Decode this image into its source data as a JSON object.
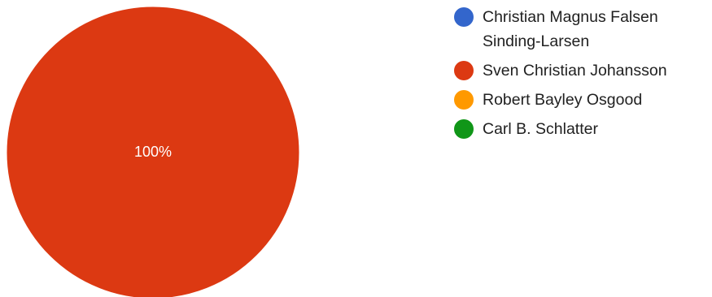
{
  "chart_data": {
    "type": "pie",
    "title": "",
    "slices": [
      {
        "label": "Christian Magnus Falsen Sinding-Larsen",
        "value": 0,
        "color": "#3366cc"
      },
      {
        "label": "Sven Christian Johansson",
        "value": 100,
        "color": "#dc3912"
      },
      {
        "label": "Robert Bayley Osgood",
        "value": 0,
        "color": "#ff9900"
      },
      {
        "label": "Carl B. Schlatter",
        "value": 0,
        "color": "#109618"
      }
    ],
    "data_labels": [
      "100%"
    ],
    "legend_placement": "right"
  }
}
